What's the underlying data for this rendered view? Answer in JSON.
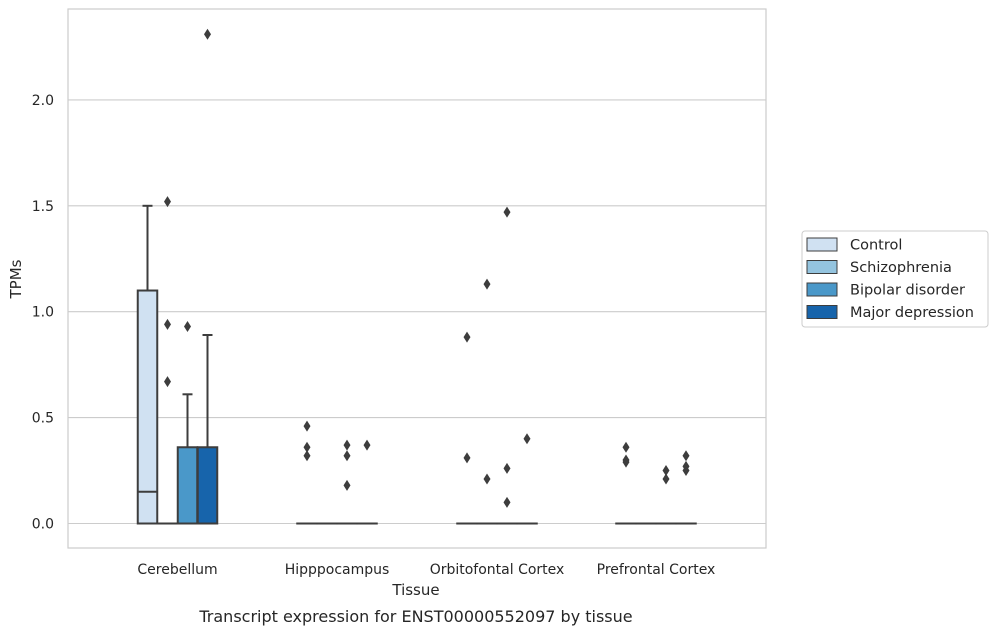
{
  "chart_data": {
    "type": "box",
    "xlabel": "Tissue",
    "ylabel": "TPMs",
    "caption": "Transcript expression for ENST00000552097 by tissue",
    "ylim": [
      -0.11,
      2.43
    ],
    "yticks": [
      "0.0",
      "0.5",
      "1.0",
      "1.5",
      "2.0"
    ],
    "yticks_values": [
      0.0,
      0.5,
      1.0,
      1.5,
      2.0
    ],
    "grid": true,
    "legend_position": "right",
    "categories": [
      "Cerebellum",
      "Hipppocampus",
      "Orbitofontal Cortex",
      "Prefrontal Cortex"
    ],
    "series": [
      {
        "name": "Control",
        "color": "#d0e1f2",
        "boxes": [
          {
            "q1": 0.0,
            "median": 0.15,
            "q3": 1.1,
            "whisker_low": 0.0,
            "whisker_high": 1.5,
            "outliers": []
          },
          {
            "q1": 0.0,
            "median": 0.0,
            "q3": 0.0,
            "whisker_low": 0.0,
            "whisker_high": 0.0,
            "outliers": [
              0.46,
              0.36,
              0.32
            ]
          },
          {
            "q1": 0.0,
            "median": 0.0,
            "q3": 0.0,
            "whisker_low": 0.0,
            "whisker_high": 0.0,
            "outliers": [
              0.88,
              0.31
            ]
          },
          {
            "q1": 0.0,
            "median": 0.0,
            "q3": 0.0,
            "whisker_low": 0.0,
            "whisker_high": 0.0,
            "outliers": [
              0.36,
              0.3,
              0.29
            ]
          }
        ]
      },
      {
        "name": "Schizophrenia",
        "color": "#94c4df",
        "boxes": [
          {
            "q1": 0.0,
            "median": 0.0,
            "q3": 0.0,
            "whisker_low": 0.0,
            "whisker_high": 0.0,
            "outliers": [
              1.52,
              0.94,
              0.67
            ]
          },
          {
            "q1": 0.0,
            "median": 0.0,
            "q3": 0.0,
            "whisker_low": 0.0,
            "whisker_high": 0.0,
            "outliers": []
          },
          {
            "q1": 0.0,
            "median": 0.0,
            "q3": 0.0,
            "whisker_low": 0.0,
            "whisker_high": 0.0,
            "outliers": [
              1.13,
              0.21
            ]
          },
          {
            "q1": 0.0,
            "median": 0.0,
            "q3": 0.0,
            "whisker_low": 0.0,
            "whisker_high": 0.0,
            "outliers": []
          }
        ]
      },
      {
        "name": "Bipolar disorder",
        "color": "#4a98c9",
        "boxes": [
          {
            "q1": 0.0,
            "median": 0.0,
            "q3": 0.36,
            "whisker_low": 0.0,
            "whisker_high": 0.61,
            "outliers": [
              0.93
            ]
          },
          {
            "q1": 0.0,
            "median": 0.0,
            "q3": 0.0,
            "whisker_low": 0.0,
            "whisker_high": 0.0,
            "outliers": [
              0.37,
              0.32,
              0.18
            ]
          },
          {
            "q1": 0.0,
            "median": 0.0,
            "q3": 0.0,
            "whisker_low": 0.0,
            "whisker_high": 0.0,
            "outliers": [
              1.47,
              0.26,
              0.1
            ]
          },
          {
            "q1": 0.0,
            "median": 0.0,
            "q3": 0.0,
            "whisker_low": 0.0,
            "whisker_high": 0.0,
            "outliers": [
              0.25,
              0.21
            ]
          }
        ]
      },
      {
        "name": "Major depression",
        "color": "#1764ab",
        "boxes": [
          {
            "q1": 0.0,
            "median": 0.0,
            "q3": 0.36,
            "whisker_low": 0.0,
            "whisker_high": 0.89,
            "outliers": [
              2.31
            ]
          },
          {
            "q1": 0.0,
            "median": 0.0,
            "q3": 0.0,
            "whisker_low": 0.0,
            "whisker_high": 0.0,
            "outliers": [
              0.37
            ]
          },
          {
            "q1": 0.0,
            "median": 0.0,
            "q3": 0.0,
            "whisker_low": 0.0,
            "whisker_high": 0.0,
            "outliers": [
              0.4
            ]
          },
          {
            "q1": 0.0,
            "median": 0.0,
            "q3": 0.0,
            "whisker_low": 0.0,
            "whisker_high": 0.0,
            "outliers": [
              0.32,
              0.27,
              0.25
            ]
          }
        ]
      }
    ]
  }
}
